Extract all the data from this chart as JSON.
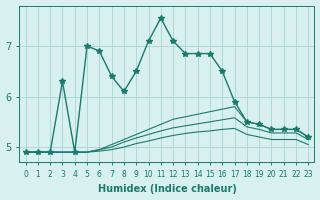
{
  "xlabel": "Humidex (Indice chaleur)",
  "ylabel": "",
  "x_values": [
    0,
    1,
    2,
    3,
    4,
    5,
    6,
    7,
    8,
    9,
    10,
    11,
    12,
    13,
    14,
    15,
    16,
    17,
    18,
    19,
    20,
    21,
    22,
    23
  ],
  "line1_y": [
    4.9,
    4.9,
    4.9,
    6.3,
    4.9,
    7.0,
    6.9,
    6.4,
    6.1,
    6.5,
    7.1,
    7.55,
    7.1,
    6.85,
    6.85,
    6.85,
    6.5,
    5.9,
    5.5,
    5.45,
    5.35,
    5.35,
    5.35,
    5.2
  ],
  "line2_y": [
    4.9,
    4.9,
    4.9,
    4.9,
    4.9,
    4.9,
    4.95,
    5.05,
    5.15,
    5.25,
    5.35,
    5.45,
    5.55,
    5.6,
    5.65,
    5.7,
    5.75,
    5.8,
    5.5,
    5.45,
    5.35,
    5.35,
    5.35,
    5.2
  ],
  "line3_y": [
    4.9,
    4.9,
    4.9,
    4.9,
    4.9,
    4.9,
    4.95,
    5.0,
    5.1,
    5.18,
    5.25,
    5.32,
    5.38,
    5.42,
    5.46,
    5.5,
    5.54,
    5.58,
    5.4,
    5.35,
    5.28,
    5.28,
    5.28,
    5.15
  ],
  "line4_y": [
    4.9,
    4.9,
    4.9,
    4.9,
    4.9,
    4.9,
    4.92,
    4.95,
    5.0,
    5.07,
    5.12,
    5.18,
    5.23,
    5.27,
    5.3,
    5.32,
    5.35,
    5.37,
    5.25,
    5.2,
    5.15,
    5.15,
    5.15,
    5.05
  ],
  "line_color": "#1a7a6e",
  "bg_color": "#d8f0f0",
  "grid_color": "#b0d8d8",
  "ylim": [
    4.7,
    7.8
  ],
  "yticks": [
    5,
    6,
    7
  ],
  "figsize": [
    3.2,
    2.0
  ],
  "dpi": 100
}
